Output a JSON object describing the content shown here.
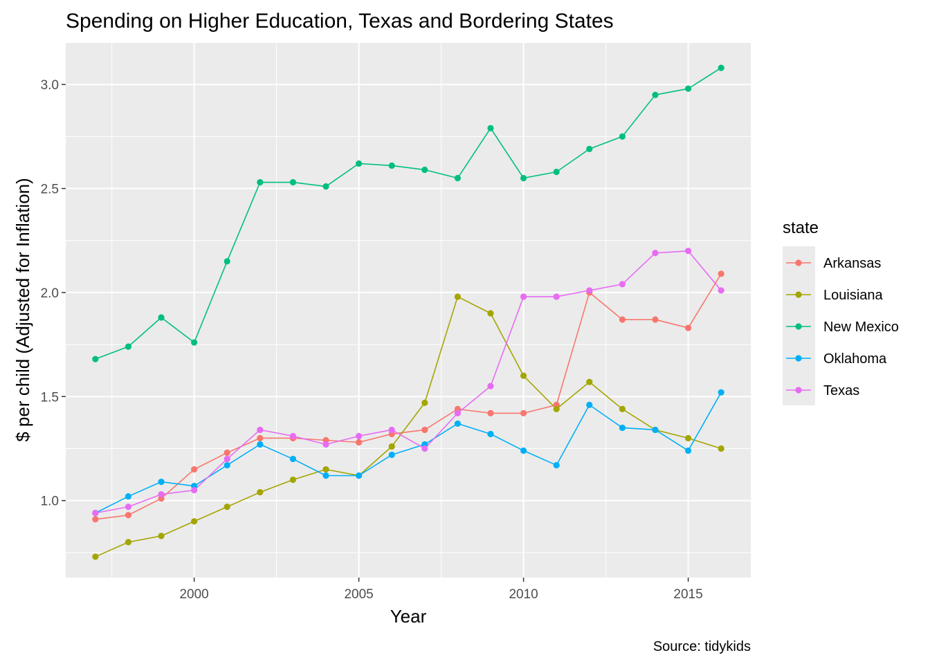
{
  "chart_data": {
    "type": "line",
    "title": "Spending on Higher Education, Texas and Bordering States",
    "xlabel": "Year",
    "ylabel": "$ per child (Adjusted for Inflation)",
    "caption": "Source: tidykids",
    "xlim": [
      1996.1,
      2016.9
    ],
    "ylim": [
      0.63,
      3.2
    ],
    "x_ticks": [
      2000,
      2005,
      2010,
      2015
    ],
    "x_tick_labels": [
      "2000",
      "2005",
      "2010",
      "2015"
    ],
    "y_ticks": [
      1.0,
      1.5,
      2.0,
      2.5,
      3.0
    ],
    "y_tick_labels": [
      "1.0",
      "1.5",
      "2.0",
      "2.5",
      "3.0"
    ],
    "grid": true,
    "legend": {
      "title": "state",
      "position": "right"
    },
    "x": [
      1997,
      1998,
      1999,
      2000,
      2001,
      2002,
      2003,
      2004,
      2005,
      2006,
      2007,
      2008,
      2009,
      2010,
      2011,
      2012,
      2013,
      2014,
      2015,
      2016
    ],
    "series": [
      {
        "name": "Arkansas",
        "color": "#F8766D",
        "values": [
          0.91,
          0.93,
          1.01,
          1.15,
          1.23,
          1.3,
          1.3,
          1.29,
          1.28,
          1.32,
          1.34,
          1.44,
          1.42,
          1.42,
          1.46,
          2.0,
          1.87,
          1.87,
          1.83,
          2.09
        ]
      },
      {
        "name": "Louisiana",
        "color": "#A3A500",
        "values": [
          0.73,
          0.8,
          0.83,
          0.9,
          0.97,
          1.04,
          1.1,
          1.15,
          1.12,
          1.26,
          1.47,
          1.98,
          1.9,
          1.6,
          1.44,
          1.57,
          1.44,
          1.34,
          1.3,
          1.25
        ]
      },
      {
        "name": "New Mexico",
        "color": "#00BF7D",
        "values": [
          1.68,
          1.74,
          1.88,
          1.76,
          2.15,
          2.53,
          2.53,
          2.51,
          2.62,
          2.61,
          2.59,
          2.55,
          2.79,
          2.55,
          2.58,
          2.69,
          2.75,
          2.95,
          2.98,
          3.08
        ]
      },
      {
        "name": "Oklahoma",
        "color": "#00B0F6",
        "values": [
          0.94,
          1.02,
          1.09,
          1.07,
          1.17,
          1.27,
          1.2,
          1.12,
          1.12,
          1.22,
          1.27,
          1.37,
          1.32,
          1.24,
          1.17,
          1.46,
          1.35,
          1.34,
          1.24,
          1.52
        ]
      },
      {
        "name": "Texas",
        "color": "#E76BF3",
        "values": [
          0.94,
          0.97,
          1.03,
          1.05,
          1.2,
          1.34,
          1.31,
          1.27,
          1.31,
          1.34,
          1.25,
          1.42,
          1.55,
          1.98,
          1.98,
          2.01,
          2.04,
          2.19,
          2.2,
          2.01
        ]
      }
    ]
  }
}
